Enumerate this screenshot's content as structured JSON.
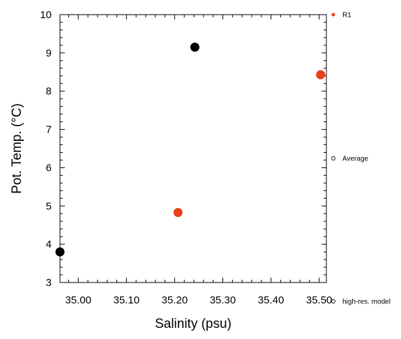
{
  "chart_data": {
    "type": "scatter",
    "xlabel": "Salinity (psu)",
    "ylabel": "Pot. Temp. (°C)",
    "xlim": [
      34.962,
      35.515
    ],
    "ylim": [
      3,
      10
    ],
    "x_ticks": [
      35.0,
      35.1,
      35.2,
      35.3,
      35.4,
      35.5
    ],
    "x_tick_labels": [
      "35.00",
      "35.10",
      "35.20",
      "35.30",
      "35.40",
      "35.50"
    ],
    "y_ticks": [
      3,
      4,
      5,
      6,
      7,
      8,
      9,
      10
    ],
    "y_tick_labels": [
      "3",
      "4",
      "5",
      "6",
      "7",
      "8",
      "9",
      "10"
    ],
    "grid": false,
    "legend_placement": "right",
    "series": [
      {
        "name": "R1",
        "color": "#e8401c",
        "marker": "filled-circle",
        "points": [
          {
            "x": 35.207,
            "y": 4.83
          },
          {
            "x": 35.503,
            "y": 8.43
          }
        ]
      },
      {
        "color": "#000000",
        "marker": "filled-circle",
        "points": [
          {
            "x": 34.962,
            "y": 3.8
          },
          {
            "x": 35.242,
            "y": 9.15
          }
        ]
      }
    ],
    "legend": [
      {
        "label": "R1",
        "color": "#e8401c",
        "marker": "filled-circle"
      },
      {
        "label": "Average",
        "color": "#000000",
        "marker": "open-circle"
      },
      {
        "label": "high-res. model",
        "color": "#000000",
        "marker": "open-circle"
      }
    ]
  }
}
